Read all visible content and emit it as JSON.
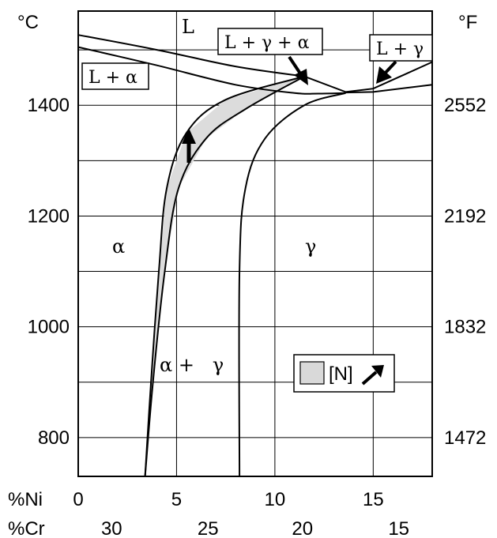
{
  "chart_data": {
    "type": "line",
    "title": "",
    "x_axis_bottom": {
      "label": "%Ni",
      "ticks": [
        "0",
        "5",
        "10",
        "15"
      ],
      "range": [
        0,
        18
      ]
    },
    "x_axis_bottom_secondary": {
      "label": "%Cr",
      "ticks": [
        "30",
        "25",
        "20",
        "15"
      ]
    },
    "y_axis_left": {
      "unit": "°C",
      "ticks": [
        "800",
        "1000",
        "1200",
        "1400"
      ],
      "range": [
        730,
        1570
      ]
    },
    "y_axis_right": {
      "unit": "°F",
      "ticks": [
        "1472",
        "1832",
        "2192",
        "2552"
      ]
    },
    "grid": true,
    "phase_labels": {
      "L": "L",
      "alpha": "α",
      "gamma": "γ",
      "alpha_gamma": "α +   γ",
      "L_alpha": "L + α",
      "L_gamma_alpha": "L + γ + α",
      "L_gamma": "L + γ"
    },
    "legend": {
      "label": "[N]",
      "placement": "lower-right"
    },
    "series": [
      {
        "id": "liquidus_alpha",
        "values": [
          [
            0,
            1527
          ],
          [
            4,
            1500
          ],
          [
            8,
            1470
          ],
          [
            11.5,
            1452
          ]
        ]
      },
      {
        "id": "solidus_alpha",
        "values": [
          [
            0,
            1505
          ],
          [
            4,
            1472
          ],
          [
            8,
            1437
          ],
          [
            11,
            1422
          ],
          [
            12.2,
            1421
          ],
          [
            13.6,
            1422
          ]
        ]
      },
      {
        "id": "liquidus_gamma",
        "values": [
          [
            11.5,
            1452
          ],
          [
            13.6,
            1424
          ],
          [
            15,
            1430
          ],
          [
            18,
            1478
          ]
        ]
      },
      {
        "id": "solidus_gamma",
        "values": [
          [
            13.6,
            1423
          ],
          [
            15,
            1424
          ],
          [
            18,
            1437
          ]
        ]
      },
      {
        "id": "alpha_solvus_shifted",
        "values": [
          [
            3.4,
            730
          ],
          [
            3.7,
            900
          ],
          [
            4.1,
            1100
          ],
          [
            4.5,
            1250
          ],
          [
            5.5,
            1350
          ],
          [
            7.5,
            1410
          ],
          [
            11.5,
            1452
          ]
        ]
      },
      {
        "id": "alpha_solvus_base",
        "values": [
          [
            3.4,
            730
          ],
          [
            3.8,
            900
          ],
          [
            4.4,
            1100
          ],
          [
            5.1,
            1250
          ],
          [
            6.5,
            1340
          ],
          [
            8.5,
            1393
          ],
          [
            11.5,
            1452
          ]
        ]
      },
      {
        "id": "gamma_solvus",
        "values": [
          [
            8.2,
            730
          ],
          [
            8.2,
            1100
          ],
          [
            8.5,
            1250
          ],
          [
            9.5,
            1340
          ],
          [
            11.5,
            1400
          ],
          [
            13.6,
            1422
          ]
        ]
      }
    ]
  }
}
